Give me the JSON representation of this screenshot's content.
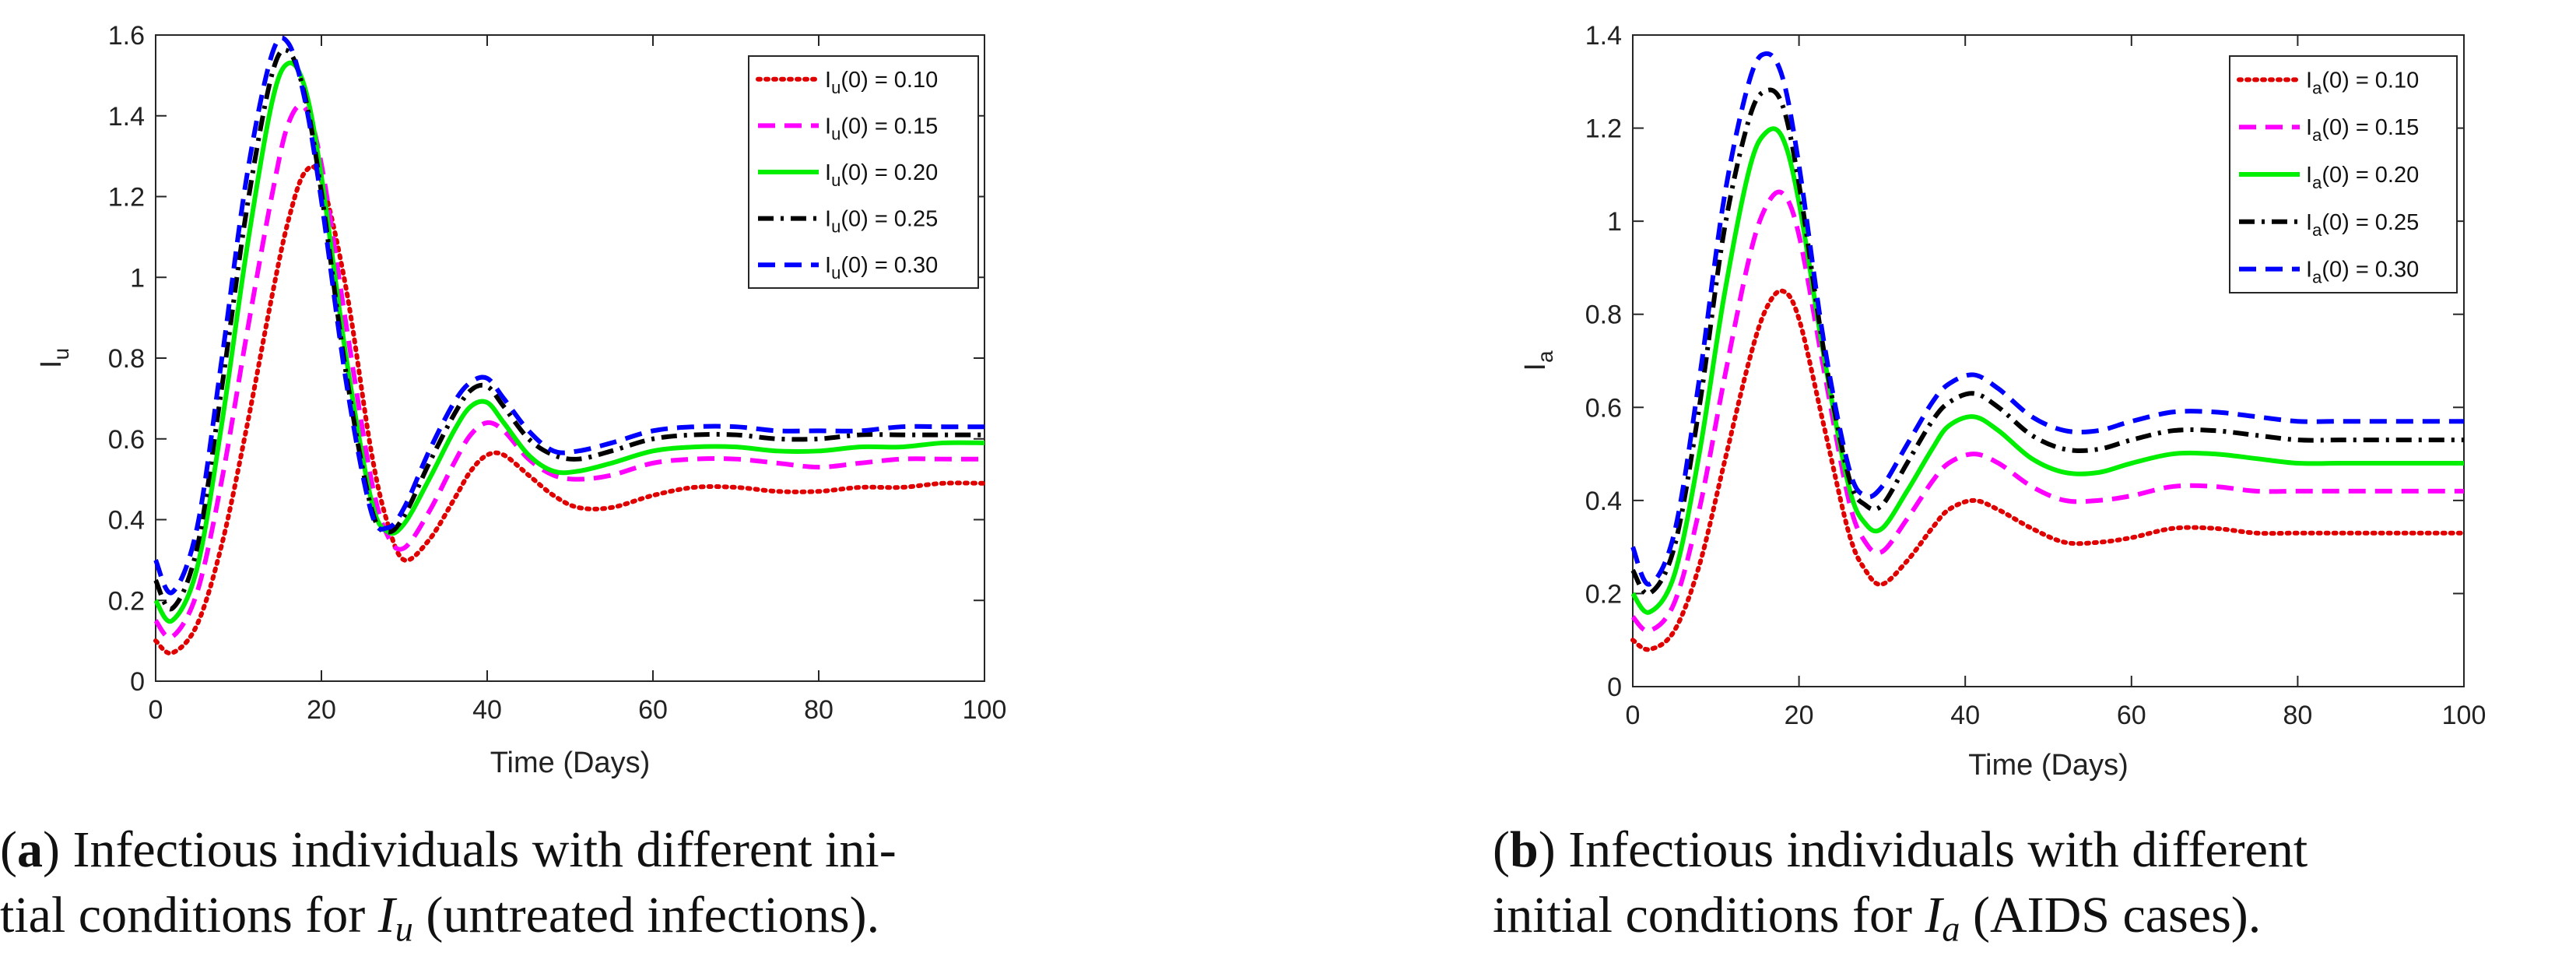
{
  "chart_data": [
    {
      "type": "line",
      "panel": "a",
      "xlabel": "Time (Days)",
      "ylabel": "I",
      "ylabel_sub": "u",
      "xlim": [
        0,
        100
      ],
      "ylim": [
        0,
        1.6
      ],
      "xticks": [
        0,
        20,
        40,
        60,
        80,
        100
      ],
      "yticks": [
        0,
        0.2,
        0.4,
        0.6,
        0.8,
        1,
        1.2,
        1.4,
        1.6
      ],
      "ytick_labels": [
        "0",
        "0.2",
        "0.4",
        "0.6",
        "0.8",
        "1",
        "1.2",
        "1.4",
        "1.6"
      ],
      "legend_position": "top-right",
      "x": [
        0,
        2,
        5,
        8,
        11,
        14,
        16,
        18,
        20,
        23,
        26,
        28,
        30,
        33,
        36,
        38,
        40,
        42,
        45,
        48,
        51,
        55,
        60,
        65,
        70,
        75,
        80,
        85,
        90,
        95,
        100
      ],
      "series": [
        {
          "name": "I",
          "sub": "u",
          "rest": "(0) = 0.10",
          "color": "#e00000",
          "dash": "dot",
          "values": [
            0.1,
            0.07,
            0.14,
            0.34,
            0.63,
            0.95,
            1.14,
            1.26,
            1.24,
            0.97,
            0.57,
            0.39,
            0.3,
            0.35,
            0.45,
            0.52,
            0.56,
            0.56,
            0.51,
            0.46,
            0.43,
            0.43,
            0.46,
            0.48,
            0.48,
            0.47,
            0.47,
            0.48,
            0.48,
            0.49,
            0.49
          ]
        },
        {
          "name": "I",
          "sub": "u",
          "rest": "(0) = 0.15",
          "color": "#ff00ff",
          "dash": "dash",
          "values": [
            0.15,
            0.11,
            0.22,
            0.5,
            0.86,
            1.2,
            1.38,
            1.42,
            1.28,
            0.88,
            0.5,
            0.36,
            0.33,
            0.42,
            0.54,
            0.61,
            0.64,
            0.62,
            0.55,
            0.51,
            0.5,
            0.51,
            0.54,
            0.55,
            0.55,
            0.54,
            0.53,
            0.54,
            0.55,
            0.55,
            0.55
          ]
        },
        {
          "name": "I",
          "sub": "u",
          "rest": "(0) = 0.20",
          "color": "#00ee00",
          "dash": "solid",
          "values": [
            0.2,
            0.15,
            0.28,
            0.64,
            1.07,
            1.43,
            1.53,
            1.47,
            1.25,
            0.8,
            0.45,
            0.37,
            0.39,
            0.5,
            0.62,
            0.68,
            0.69,
            0.64,
            0.56,
            0.52,
            0.52,
            0.54,
            0.57,
            0.58,
            0.58,
            0.57,
            0.57,
            0.58,
            0.58,
            0.59,
            0.59
          ]
        },
        {
          "name": "I",
          "sub": "u",
          "rest": "(0) = 0.25",
          "color": "#000000",
          "dash": "dashdot",
          "values": [
            0.25,
            0.18,
            0.33,
            0.73,
            1.17,
            1.5,
            1.56,
            1.45,
            1.21,
            0.76,
            0.43,
            0.37,
            0.41,
            0.54,
            0.66,
            0.72,
            0.73,
            0.68,
            0.6,
            0.56,
            0.55,
            0.57,
            0.6,
            0.61,
            0.61,
            0.6,
            0.6,
            0.61,
            0.61,
            0.61,
            0.61
          ]
        },
        {
          "name": "I",
          "sub": "u",
          "rest": "(0) = 0.30",
          "color": "#0000ff",
          "dash": "dash",
          "values": [
            0.3,
            0.22,
            0.38,
            0.8,
            1.25,
            1.55,
            1.58,
            1.44,
            1.19,
            0.74,
            0.42,
            0.38,
            0.43,
            0.57,
            0.69,
            0.74,
            0.75,
            0.7,
            0.62,
            0.57,
            0.57,
            0.59,
            0.62,
            0.63,
            0.63,
            0.62,
            0.62,
            0.62,
            0.63,
            0.63,
            0.63
          ]
        }
      ]
    },
    {
      "type": "line",
      "panel": "b",
      "xlabel": "Time (Days)",
      "ylabel": "I",
      "ylabel_sub": "a",
      "xlim": [
        0,
        100
      ],
      "ylim": [
        0,
        1.4
      ],
      "xticks": [
        0,
        20,
        40,
        60,
        80,
        100
      ],
      "yticks": [
        0,
        0.2,
        0.4,
        0.6,
        0.8,
        1,
        1.2,
        1.4
      ],
      "ytick_labels": [
        "0",
        "0.2",
        "0.4",
        "0.6",
        "0.8",
        "1",
        "1.2",
        "1.4"
      ],
      "legend_position": "top-right",
      "x": [
        0,
        2,
        5,
        8,
        11,
        14,
        16,
        18,
        20,
        23,
        26,
        28,
        30,
        33,
        36,
        38,
        41,
        44,
        48,
        52,
        56,
        60,
        65,
        70,
        75,
        80,
        85,
        90,
        95,
        100
      ],
      "series": [
        {
          "name": "I",
          "sub": "a",
          "rest": "(0) = 0.10",
          "color": "#e00000",
          "dash": "dot",
          "values": [
            0.1,
            0.08,
            0.12,
            0.26,
            0.48,
            0.7,
            0.81,
            0.85,
            0.79,
            0.56,
            0.33,
            0.25,
            0.22,
            0.27,
            0.34,
            0.38,
            0.4,
            0.38,
            0.34,
            0.31,
            0.31,
            0.32,
            0.34,
            0.34,
            0.33,
            0.33,
            0.33,
            0.33,
            0.33,
            0.33
          ]
        },
        {
          "name": "I",
          "sub": "a",
          "rest": "(0) = 0.15",
          "color": "#ff00ff",
          "dash": "dash",
          "values": [
            0.15,
            0.12,
            0.18,
            0.38,
            0.66,
            0.92,
            1.03,
            1.06,
            0.97,
            0.68,
            0.4,
            0.31,
            0.29,
            0.36,
            0.44,
            0.48,
            0.5,
            0.48,
            0.43,
            0.4,
            0.4,
            0.41,
            0.43,
            0.43,
            0.42,
            0.42,
            0.42,
            0.42,
            0.42,
            0.42
          ]
        },
        {
          "name": "I",
          "sub": "a",
          "rest": "(0) = 0.20",
          "color": "#00ee00",
          "dash": "solid",
          "values": [
            0.2,
            0.16,
            0.24,
            0.5,
            0.84,
            1.11,
            1.19,
            1.18,
            1.04,
            0.71,
            0.43,
            0.35,
            0.34,
            0.42,
            0.51,
            0.56,
            0.58,
            0.55,
            0.49,
            0.46,
            0.46,
            0.48,
            0.5,
            0.5,
            0.49,
            0.48,
            0.48,
            0.48,
            0.48,
            0.48
          ]
        },
        {
          "name": "I",
          "sub": "a",
          "rest": "(0) = 0.25",
          "color": "#000000",
          "dash": "dashdot",
          "values": [
            0.25,
            0.2,
            0.3,
            0.6,
            0.98,
            1.22,
            1.28,
            1.25,
            1.08,
            0.72,
            0.45,
            0.39,
            0.39,
            0.48,
            0.57,
            0.61,
            0.63,
            0.6,
            0.54,
            0.51,
            0.51,
            0.53,
            0.55,
            0.55,
            0.54,
            0.53,
            0.53,
            0.53,
            0.53,
            0.53
          ]
        },
        {
          "name": "I",
          "sub": "a",
          "rest": "(0) = 0.30",
          "color": "#0000ff",
          "dash": "dash",
          "values": [
            0.3,
            0.22,
            0.33,
            0.66,
            1.05,
            1.3,
            1.36,
            1.31,
            1.12,
            0.74,
            0.47,
            0.41,
            0.43,
            0.52,
            0.61,
            0.65,
            0.67,
            0.64,
            0.58,
            0.55,
            0.55,
            0.57,
            0.59,
            0.59,
            0.58,
            0.57,
            0.57,
            0.57,
            0.57,
            0.57
          ]
        }
      ]
    }
  ],
  "captions": {
    "a": {
      "letter": "a",
      "line1": " Infectious individuals with different ini-",
      "line2_pre": "tial conditions for ",
      "var": "I",
      "sub": "u",
      "line2_post": " (untreated infections)."
    },
    "b": {
      "letter": "b",
      "line1": " Infectious individuals with different",
      "line2_pre": "initial conditions for ",
      "var": "I",
      "sub": "a",
      "line2_post": " (AIDS cases)."
    }
  }
}
